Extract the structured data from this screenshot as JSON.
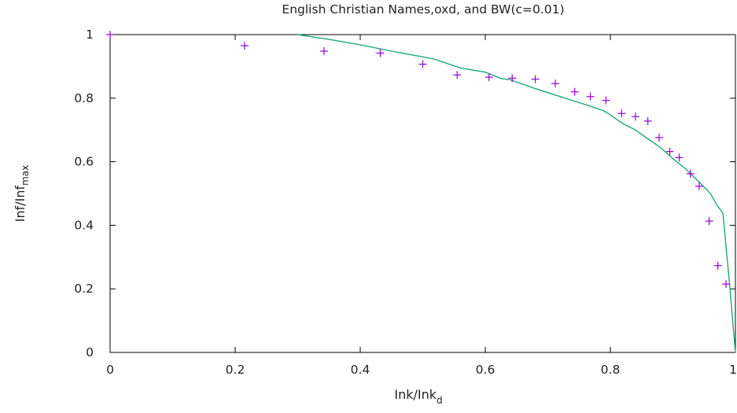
{
  "chart_data": {
    "type": "scatter",
    "title": "English Christian Names,oxd, and BW(c=0.01)",
    "xlabel": {
      "main": "Ink/Ink",
      "sub": "d"
    },
    "ylabel": {
      "main": "Inf/Inf",
      "sub": "max"
    },
    "xlim": [
      0,
      1
    ],
    "ylim": [
      0,
      1
    ],
    "xticks": [
      "0",
      "0.2",
      "0.4",
      "0.6",
      "0.8",
      "1"
    ],
    "yticks": [
      "0",
      "0.2",
      "0.4",
      "0.6",
      "0.8",
      "1"
    ],
    "grid": false,
    "legend": "none",
    "colors": {
      "points": "#9400d3",
      "line": "#1fa87a",
      "axes": "#000000"
    },
    "series": [
      {
        "kind": "points",
        "marker": "+",
        "x": [
          0.0,
          0.215,
          0.342,
          0.432,
          0.5,
          0.555,
          0.606,
          0.643,
          0.68,
          0.712,
          0.743,
          0.768,
          0.793,
          0.818,
          0.84,
          0.86,
          0.878,
          0.895,
          0.91,
          0.928,
          0.942,
          0.958,
          0.972,
          0.985
        ],
        "y": [
          1.0,
          0.965,
          0.948,
          0.942,
          0.907,
          0.873,
          0.866,
          0.863,
          0.86,
          0.846,
          0.82,
          0.805,
          0.793,
          0.752,
          0.742,
          0.728,
          0.676,
          0.632,
          0.613,
          0.562,
          0.523,
          0.413,
          0.273,
          0.215
        ]
      },
      {
        "kind": "line",
        "x": [
          0.3,
          0.35,
          0.4,
          0.45,
          0.5,
          0.52,
          0.56,
          0.6,
          0.625,
          0.64,
          0.68,
          0.72,
          0.76,
          0.79,
          0.8,
          0.82,
          0.84,
          0.86,
          0.88,
          0.9,
          0.92,
          0.94,
          0.96,
          0.97,
          0.98,
          0.99,
          1.0
        ],
        "y": [
          1.0,
          0.985,
          0.968,
          0.948,
          0.93,
          0.922,
          0.895,
          0.882,
          0.862,
          0.858,
          0.83,
          0.805,
          0.78,
          0.76,
          0.747,
          0.72,
          0.7,
          0.672,
          0.645,
          0.61,
          0.578,
          0.54,
          0.5,
          0.465,
          0.438,
          0.23,
          0.0
        ]
      }
    ]
  }
}
